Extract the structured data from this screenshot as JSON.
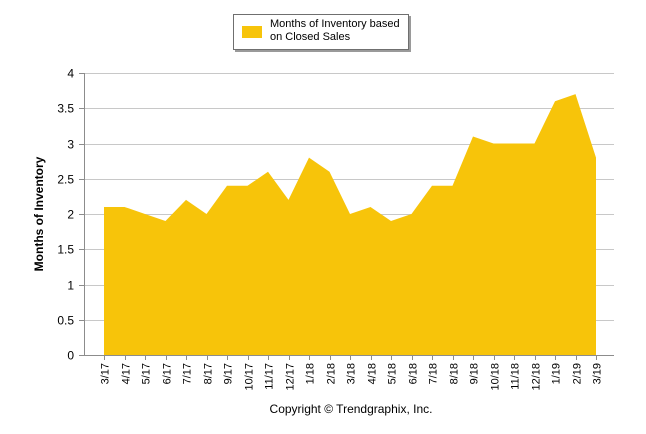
{
  "chart_data": {
    "type": "area",
    "title": "",
    "xlabel": "",
    "ylabel": "Months of Inventory",
    "ylim": [
      0,
      4
    ],
    "yticks": [
      "0",
      "0.5",
      "1",
      "1.5",
      "2",
      "2.5",
      "3",
      "3.5",
      "4"
    ],
    "grid": true,
    "legend_position": "top-center",
    "categories": [
      "3/17",
      "4/17",
      "5/17",
      "6/17",
      "7/17",
      "8/17",
      "9/17",
      "10/17",
      "11/17",
      "12/17",
      "1/18",
      "2/18",
      "3/18",
      "4/18",
      "5/18",
      "6/18",
      "7/18",
      "8/18",
      "9/18",
      "10/18",
      "11/18",
      "12/18",
      "1/19",
      "2/19",
      "3/19"
    ],
    "series": [
      {
        "name": "Months of Inventory based on Closed Sales",
        "color": "#F7C40A",
        "values": [
          2.1,
          2.1,
          2.0,
          1.9,
          2.2,
          2.0,
          2.4,
          2.4,
          2.6,
          2.2,
          2.8,
          2.6,
          2.0,
          2.1,
          1.9,
          2.0,
          2.4,
          2.4,
          3.1,
          3.0,
          3.0,
          3.0,
          3.6,
          3.7,
          2.8
        ]
      }
    ]
  },
  "legend": {
    "label": "Months of Inventory based on Closed Sales"
  },
  "footer": {
    "copyright": "Copyright © Trendgraphix, Inc."
  }
}
